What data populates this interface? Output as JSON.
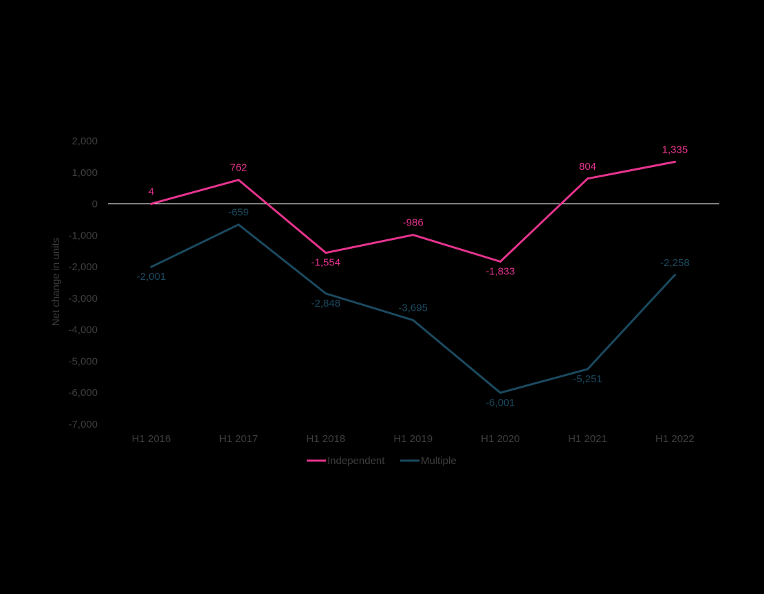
{
  "chart_data": {
    "type": "line",
    "title": "",
    "xlabel": "",
    "ylabel": "Net change in units",
    "ylim": [
      -7000,
      2000
    ],
    "yticks": [
      2000,
      1000,
      0,
      -1000,
      -2000,
      -3000,
      -4000,
      -5000,
      -6000,
      -7000
    ],
    "ytick_labels": [
      "2,000",
      "1,000",
      "0",
      "-1,000",
      "-2,000",
      "-3,000",
      "-4,000",
      "-5,000",
      "-6,000",
      "-7,000"
    ],
    "categories": [
      "H1 2016",
      "H1 2017",
      "H1 2018",
      "H1 2019",
      "H1 2020",
      "H1 2021",
      "H1 2022"
    ],
    "series": [
      {
        "name": "Independent",
        "color": "#E7348E",
        "values": [
          4,
          762,
          -1554,
          -986,
          -1833,
          804,
          1335
        ],
        "labels": [
          "4",
          "762",
          "-1,554",
          "-986",
          "-1,833",
          "804",
          "1,335"
        ],
        "label_positions": [
          "above",
          "above",
          "below",
          "above",
          "below",
          "above",
          "above"
        ]
      },
      {
        "name": "Multiple",
        "color": "#1B4A60",
        "values": [
          -2001,
          -659,
          -2848,
          -3695,
          -6001,
          -5251,
          -2258
        ],
        "labels": [
          "-2,001",
          "-659",
          "-2,848",
          "-3,695",
          "-6,001",
          "-5,251",
          "-2,258"
        ],
        "label_positions": [
          "below",
          "above",
          "below",
          "above",
          "below",
          "below",
          "above"
        ]
      }
    ],
    "zero_line": true,
    "grid": false,
    "legend_position": "bottom-center",
    "colors": {
      "background": "#000000",
      "axis_text": "#3E3E3E",
      "zero_line": "#FFFFFF"
    }
  }
}
